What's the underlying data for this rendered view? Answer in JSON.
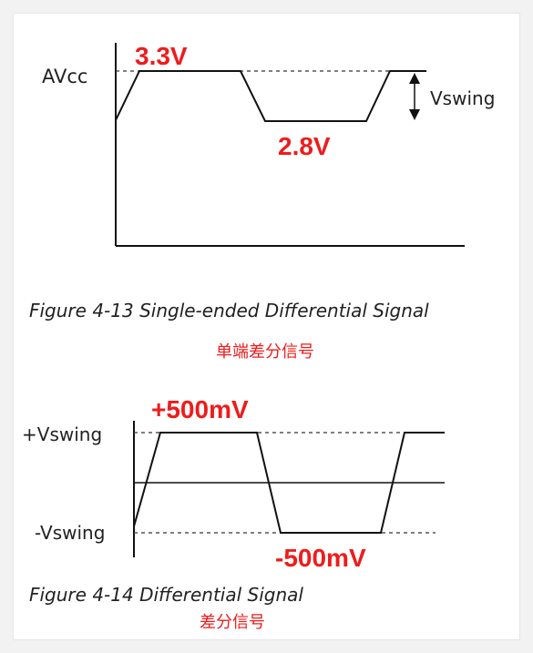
{
  "figure1": {
    "level_label": "AVcc",
    "high_value": "3.3V",
    "low_value": "2.8V",
    "swing_label": "Vswing",
    "caption": "Figure 4-13 Single-ended Differential Signal",
    "caption_cn": "单端差分信号"
  },
  "figure2": {
    "pos_label": "+Vswing",
    "neg_label": "-Vswing",
    "high_value": "+500mV",
    "low_value": "-500mV",
    "caption": "Figure 4-14 Differential Signal",
    "caption_cn": "差分信号"
  },
  "colors": {
    "accent": "#ee1c1c",
    "line": "#111111",
    "background": "#ffffff"
  }
}
